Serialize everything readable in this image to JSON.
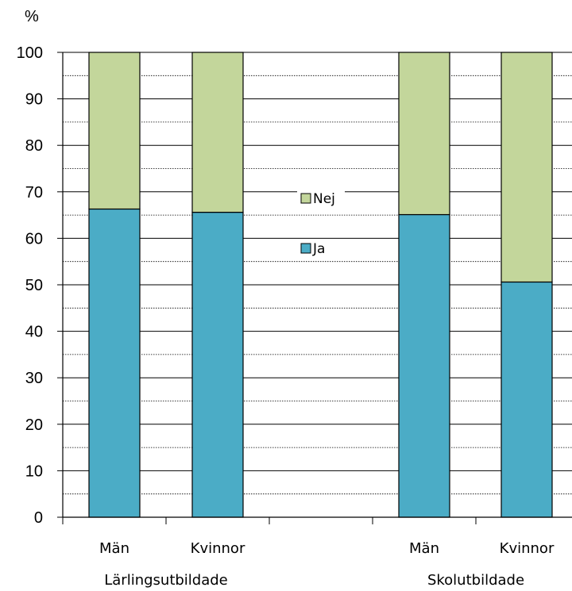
{
  "chart_data": {
    "type": "bar",
    "stacked": true,
    "ylabel": "%",
    "ylim": [
      0,
      100
    ],
    "yticks": [
      0,
      10,
      20,
      30,
      40,
      50,
      60,
      70,
      80,
      90,
      100
    ],
    "grid": true,
    "legend_position": "center",
    "groups": [
      {
        "label": "Lärlingsutbildade",
        "categories": [
          "Män",
          "Kvinnor"
        ]
      },
      {
        "label": "Skolutbildade",
        "categories": [
          "Män",
          "Kvinnor"
        ]
      }
    ],
    "categories": [
      "Män",
      "Kvinnor",
      "Män",
      "Kvinnor"
    ],
    "series": [
      {
        "name": "Ja",
        "color": "#4BACC6",
        "values": [
          66.3,
          65.6,
          65.1,
          50.6
        ]
      },
      {
        "name": "Nej",
        "color": "#C3D69B",
        "values": [
          33.7,
          34.4,
          34.9,
          49.4
        ]
      }
    ],
    "legend_order": [
      "Nej",
      "Ja"
    ]
  }
}
